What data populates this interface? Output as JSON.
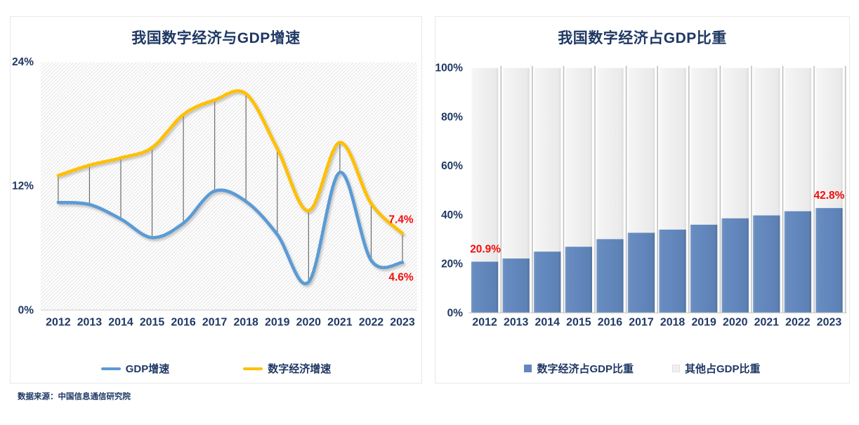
{
  "page": {
    "source_note": "数据来源：中国信息通信研究院",
    "colors": {
      "navy": "#1F3864",
      "red": "#F20D0D",
      "axis_gray": "#D9D9D9",
      "connector_gray": "#6B6B6B"
    }
  },
  "chart_data": [
    {
      "type": "line",
      "title": "我国数字经济与GDP增速",
      "categories": [
        "2012",
        "2013",
        "2014",
        "2015",
        "2016",
        "2017",
        "2018",
        "2019",
        "2020",
        "2021",
        "2022",
        "2023"
      ],
      "series": [
        {
          "name": "GDP增速",
          "color": "#5B9BD5",
          "values": [
            10.4,
            10.2,
            8.8,
            7.0,
            8.4,
            11.5,
            10.5,
            7.3,
            2.7,
            13.3,
            4.8,
            4.6
          ]
        },
        {
          "name": "数字经济增速",
          "color": "#FFC000",
          "values": [
            13.0,
            14.0,
            14.7,
            15.7,
            18.9,
            20.3,
            20.9,
            15.6,
            9.6,
            16.2,
            10.3,
            7.4
          ]
        }
      ],
      "ylim": [
        0,
        24
      ],
      "yticks": [
        {
          "value": 24,
          "label": "24%"
        },
        {
          "value": 12,
          "label": "12%"
        },
        {
          "value": 0,
          "label": "0%"
        }
      ],
      "grid": "hatched plot background, vertical connector line between the two series at every year",
      "legend_position": "bottom",
      "annotations": [
        {
          "label": "7.4%",
          "category": "2023",
          "series": "数字经济增速",
          "placement": "above",
          "color": "#F20D0D"
        },
        {
          "label": "4.6%",
          "category": "2023",
          "series": "GDP增速",
          "placement": "below",
          "color": "#F20D0D"
        }
      ]
    },
    {
      "type": "bar",
      "subtype": "stacked-100-percent",
      "title": "我国数字经济占GDP比重",
      "categories": [
        "2012",
        "2013",
        "2014",
        "2015",
        "2016",
        "2017",
        "2018",
        "2019",
        "2020",
        "2021",
        "2022",
        "2023"
      ],
      "series": [
        {
          "name": "数字经济占GDP比重",
          "color": "#6287BD",
          "values": [
            20.9,
            22.2,
            25.0,
            27.0,
            30.1,
            32.7,
            34.0,
            36.0,
            38.6,
            39.8,
            41.5,
            42.8
          ]
        },
        {
          "name": "其他占GDP比重",
          "color": "#EFEFEF",
          "values": [
            79.1,
            77.8,
            75.0,
            73.0,
            69.9,
            67.3,
            66.0,
            64.0,
            61.4,
            60.2,
            58.5,
            57.2
          ]
        }
      ],
      "ylim": [
        0,
        100
      ],
      "yticks": [
        {
          "value": 100,
          "label": "100%"
        },
        {
          "value": 80,
          "label": "80%"
        },
        {
          "value": 60,
          "label": "60%"
        },
        {
          "value": 40,
          "label": "40%"
        },
        {
          "value": 20,
          "label": "20%"
        },
        {
          "value": 0,
          "label": "0%"
        }
      ],
      "grid": "off",
      "legend_position": "bottom",
      "annotations": [
        {
          "label": "20.9%",
          "category": "2012",
          "series": "数字经济占GDP比重",
          "placement": "above",
          "color": "#F20D0D"
        },
        {
          "label": "42.8%",
          "category": "2023",
          "series": "数字经济占GDP比重",
          "placement": "above",
          "color": "#F20D0D"
        }
      ]
    }
  ]
}
